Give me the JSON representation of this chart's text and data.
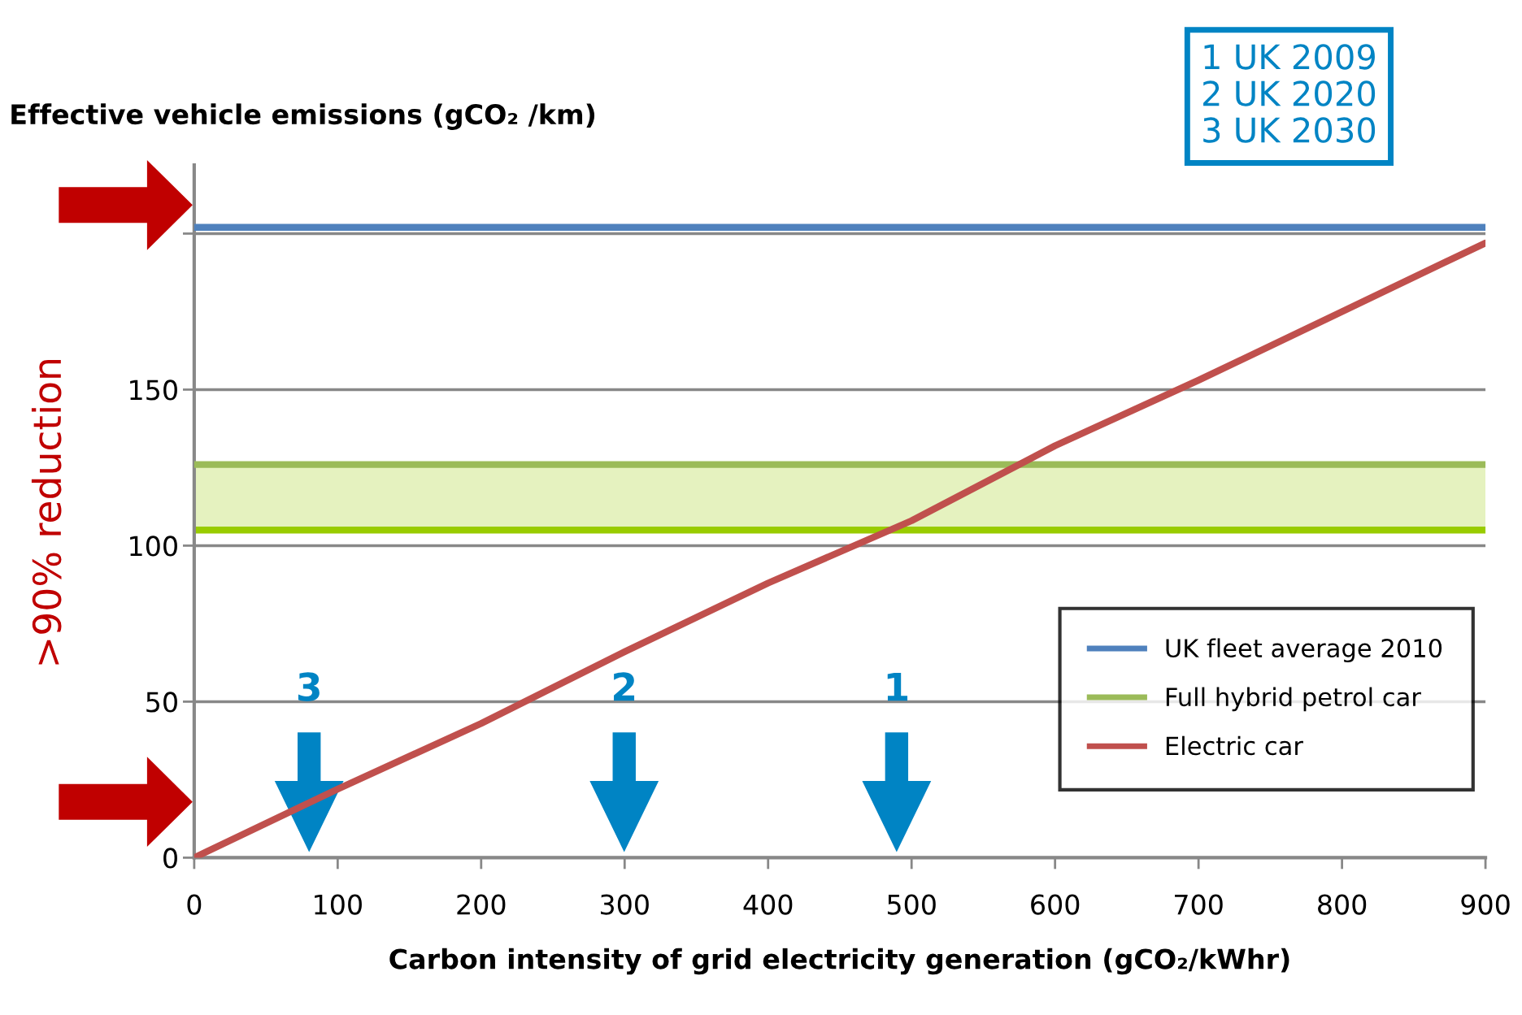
{
  "chart_data": {
    "type": "line",
    "title": "Effective vehicle emissions (gCO₂ /km)",
    "xlabel": "Carbon intensity of grid electricity generation (gCO₂/kWhr)",
    "series": [
      {
        "name": "UK fleet average 2010",
        "color": "#4f81bd",
        "x": [
          0,
          900
        ],
        "values": [
          202,
          202
        ]
      },
      {
        "name": "Full hybrid petrol car",
        "color": "#9bbb59",
        "x": [
          0,
          900
        ],
        "values": [
          126,
          126
        ]
      },
      {
        "name": "Electric car",
        "color": "#c0504d",
        "x": [
          0,
          100,
          200,
          300,
          400,
          500,
          600,
          700,
          800,
          900
        ],
        "values": [
          0,
          22,
          43,
          66,
          88,
          108,
          132,
          153,
          175,
          197
        ]
      }
    ],
    "bands": [
      {
        "axis": "y",
        "from": 105,
        "to": 126,
        "color": "#99cc00"
      }
    ],
    "annotations": [
      ">90% reduction",
      "1 UK 2009\n2 UK 2020\n3 UK 2030",
      "3",
      "2",
      "1"
    ],
    "ref_lines": [
      {
        "axis": "y",
        "value": 105,
        "color": "#99cc00"
      }
    ],
    "xlim": [
      0,
      900
    ],
    "xticks": [
      0,
      100,
      200,
      300,
      400,
      500,
      600,
      700,
      800,
      900
    ],
    "ylim": [
      0,
      222
    ],
    "yticks": [
      0,
      50,
      100,
      150,
      {
        "value": 200,
        "label": null
      }
    ],
    "grid": "y",
    "legend": "lower right",
    "marker": "none",
    "line_style": "solid"
  }
}
